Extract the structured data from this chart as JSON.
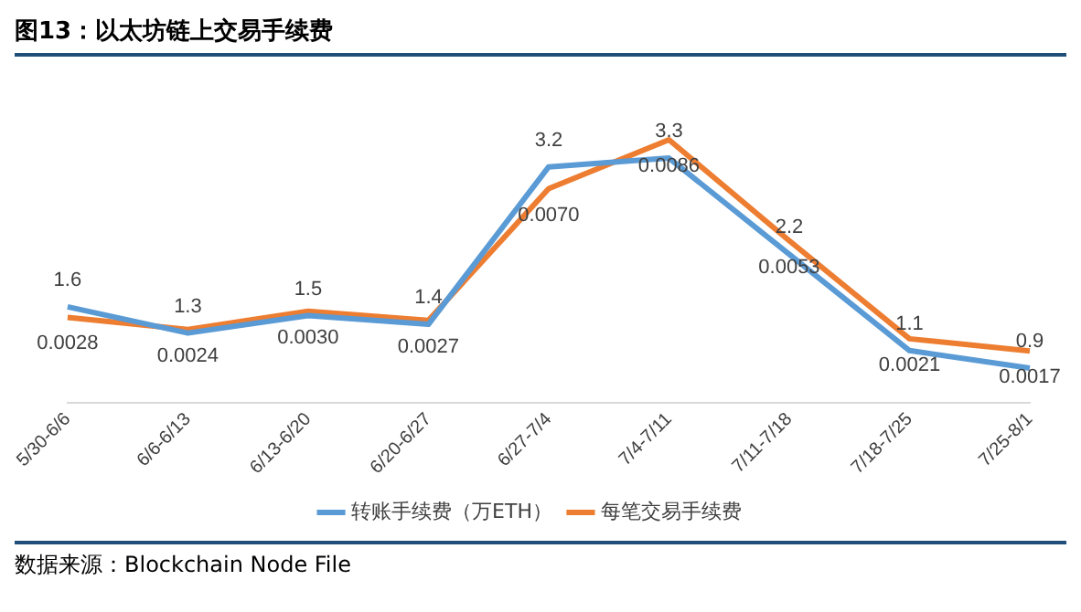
{
  "chart_data": {
    "type": "line",
    "title": "图13：以太坊链上交易手续费",
    "categories": [
      "5/30-6/6",
      "6/6-6/13",
      "6/13-6/20",
      "6/20-6/27",
      "6/27-7/4",
      "7/4-7/11",
      "7/11-7/18",
      "7/18-7/25",
      "7/25-8/1"
    ],
    "series": [
      {
        "name": "转账手续费（万ETH）",
        "color": "#5b9bd5",
        "values": [
          1.6,
          1.3,
          1.5,
          1.4,
          3.2,
          3.3,
          2.2,
          1.1,
          0.9
        ],
        "value_labels": [
          "1.6",
          "1.3",
          "1.5",
          "1.4",
          "3.2",
          "3.3",
          "2.2",
          "1.1",
          "0.9"
        ]
      },
      {
        "name": "每笔交易手续费",
        "color": "#ed7d31",
        "axis": "y2",
        "values": [
          0.0028,
          0.0024,
          0.003,
          0.0027,
          0.007,
          0.0086,
          0.0053,
          0.0021,
          0.0017
        ],
        "value_labels": [
          "0.0028",
          "0.0024",
          "0.0030",
          "0.0027",
          "0.0070",
          "0.0086",
          "0.0053",
          "0.0021",
          "0.0017"
        ]
      }
    ],
    "tick_labels": "x",
    "grid": false,
    "legend": "bottom",
    "marker": "none",
    "line_style": "solid",
    "annotations": [
      "数据来源：Blockchain Node File"
    ]
  }
}
